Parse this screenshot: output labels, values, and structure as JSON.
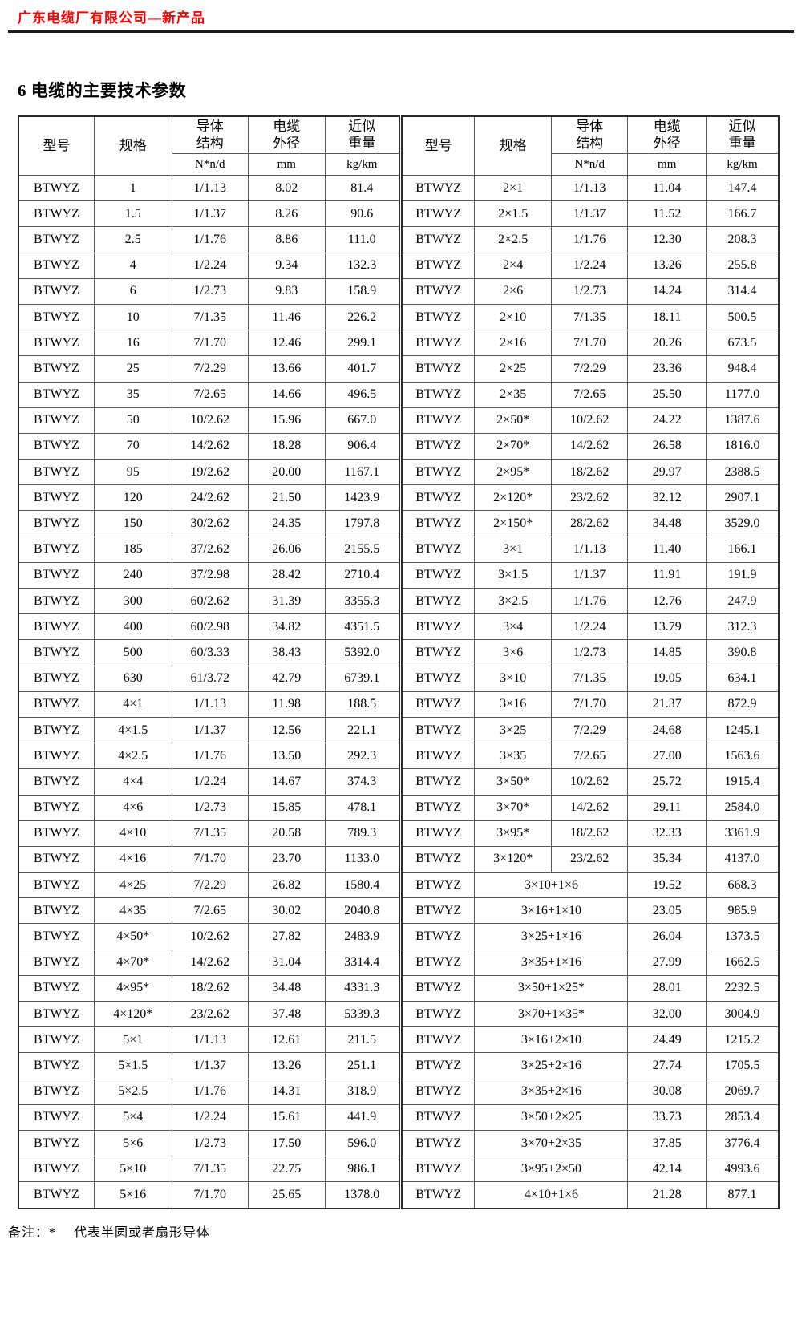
{
  "page": {
    "header": "广东电缆厂有限公司—新产品",
    "title": "6 电缆的主要技术参数",
    "note": "备注：*　 代表半圆或者扇形导体",
    "accent_color": "#ff0000"
  },
  "table": {
    "headers": {
      "model": "型号",
      "spec": "规格",
      "conductor_l1": "导体",
      "conductor_l2": "结构",
      "od_l1": "电缆",
      "od_l2": "外径",
      "weight_l1": "近似",
      "weight_l2": "重量",
      "conductor_unit": "N*n/d",
      "od_unit": "mm",
      "weight_unit": "kg/km"
    },
    "left_rows": [
      [
        "BTWYZ",
        "1",
        "1/1.13",
        "8.02",
        "81.4"
      ],
      [
        "BTWYZ",
        "1.5",
        "1/1.37",
        "8.26",
        "90.6"
      ],
      [
        "BTWYZ",
        "2.5",
        "1/1.76",
        "8.86",
        "111.0"
      ],
      [
        "BTWYZ",
        "4",
        "1/2.24",
        "9.34",
        "132.3"
      ],
      [
        "BTWYZ",
        "6",
        "1/2.73",
        "9.83",
        "158.9"
      ],
      [
        "BTWYZ",
        "10",
        "7/1.35",
        "11.46",
        "226.2"
      ],
      [
        "BTWYZ",
        "16",
        "7/1.70",
        "12.46",
        "299.1"
      ],
      [
        "BTWYZ",
        "25",
        "7/2.29",
        "13.66",
        "401.7"
      ],
      [
        "BTWYZ",
        "35",
        "7/2.65",
        "14.66",
        "496.5"
      ],
      [
        "BTWYZ",
        "50",
        "10/2.62",
        "15.96",
        "667.0"
      ],
      [
        "BTWYZ",
        "70",
        "14/2.62",
        "18.28",
        "906.4"
      ],
      [
        "BTWYZ",
        "95",
        "19/2.62",
        "20.00",
        "1167.1"
      ],
      [
        "BTWYZ",
        "120",
        "24/2.62",
        "21.50",
        "1423.9"
      ],
      [
        "BTWYZ",
        "150",
        "30/2.62",
        "24.35",
        "1797.8"
      ],
      [
        "BTWYZ",
        "185",
        "37/2.62",
        "26.06",
        "2155.5"
      ],
      [
        "BTWYZ",
        "240",
        "37/2.98",
        "28.42",
        "2710.4"
      ],
      [
        "BTWYZ",
        "300",
        "60/2.62",
        "31.39",
        "3355.3"
      ],
      [
        "BTWYZ",
        "400",
        "60/2.98",
        "34.82",
        "4351.5"
      ],
      [
        "BTWYZ",
        "500",
        "60/3.33",
        "38.43",
        "5392.0"
      ],
      [
        "BTWYZ",
        "630",
        "61/3.72",
        "42.79",
        "6739.1"
      ],
      [
        "BTWYZ",
        "4×1",
        "1/1.13",
        "11.98",
        "188.5"
      ],
      [
        "BTWYZ",
        "4×1.5",
        "1/1.37",
        "12.56",
        "221.1"
      ],
      [
        "BTWYZ",
        "4×2.5",
        "1/1.76",
        "13.50",
        "292.3"
      ],
      [
        "BTWYZ",
        "4×4",
        "1/2.24",
        "14.67",
        "374.3"
      ],
      [
        "BTWYZ",
        "4×6",
        "1/2.73",
        "15.85",
        "478.1"
      ],
      [
        "BTWYZ",
        "4×10",
        "7/1.35",
        "20.58",
        "789.3"
      ],
      [
        "BTWYZ",
        "4×16",
        "7/1.70",
        "23.70",
        "1133.0"
      ],
      [
        "BTWYZ",
        "4×25",
        "7/2.29",
        "26.82",
        "1580.4"
      ],
      [
        "BTWYZ",
        "4×35",
        "7/2.65",
        "30.02",
        "2040.8"
      ],
      [
        "BTWYZ",
        "4×50*",
        "10/2.62",
        "27.82",
        "2483.9"
      ],
      [
        "BTWYZ",
        "4×70*",
        "14/2.62",
        "31.04",
        "3314.4"
      ],
      [
        "BTWYZ",
        "4×95*",
        "18/2.62",
        "34.48",
        "4331.3"
      ],
      [
        "BTWYZ",
        "4×120*",
        "23/2.62",
        "37.48",
        "5339.3"
      ],
      [
        "BTWYZ",
        "5×1",
        "1/1.13",
        "12.61",
        "211.5"
      ],
      [
        "BTWYZ",
        "5×1.5",
        "1/1.37",
        "13.26",
        "251.1"
      ],
      [
        "BTWYZ",
        "5×2.5",
        "1/1.76",
        "14.31",
        "318.9"
      ],
      [
        "BTWYZ",
        "5×4",
        "1/2.24",
        "15.61",
        "441.9"
      ],
      [
        "BTWYZ",
        "5×6",
        "1/2.73",
        "17.50",
        "596.0"
      ],
      [
        "BTWYZ",
        "5×10",
        "7/1.35",
        "22.75",
        "986.1"
      ],
      [
        "BTWYZ",
        "5×16",
        "7/1.70",
        "25.65",
        "1378.0"
      ]
    ],
    "right_rows": [
      [
        "BTWYZ",
        "2×1",
        "1/1.13",
        "11.04",
        "147.4"
      ],
      [
        "BTWYZ",
        "2×1.5",
        "1/1.37",
        "11.52",
        "166.7"
      ],
      [
        "BTWYZ",
        "2×2.5",
        "1/1.76",
        "12.30",
        "208.3"
      ],
      [
        "BTWYZ",
        "2×4",
        "1/2.24",
        "13.26",
        "255.8"
      ],
      [
        "BTWYZ",
        "2×6",
        "1/2.73",
        "14.24",
        "314.4"
      ],
      [
        "BTWYZ",
        "2×10",
        "7/1.35",
        "18.11",
        "500.5"
      ],
      [
        "BTWYZ",
        "2×16",
        "7/1.70",
        "20.26",
        "673.5"
      ],
      [
        "BTWYZ",
        "2×25",
        "7/2.29",
        "23.36",
        "948.4"
      ],
      [
        "BTWYZ",
        "2×35",
        "7/2.65",
        "25.50",
        "1177.0"
      ],
      [
        "BTWYZ",
        "2×50*",
        "10/2.62",
        "24.22",
        "1387.6"
      ],
      [
        "BTWYZ",
        "2×70*",
        "14/2.62",
        "26.58",
        "1816.0"
      ],
      [
        "BTWYZ",
        "2×95*",
        "18/2.62",
        "29.97",
        "2388.5"
      ],
      [
        "BTWYZ",
        "2×120*",
        "23/2.62",
        "32.12",
        "2907.1"
      ],
      [
        "BTWYZ",
        "2×150*",
        "28/2.62",
        "34.48",
        "3529.0"
      ],
      [
        "BTWYZ",
        "3×1",
        "1/1.13",
        "11.40",
        "166.1"
      ],
      [
        "BTWYZ",
        "3×1.5",
        "1/1.37",
        "11.91",
        "191.9"
      ],
      [
        "BTWYZ",
        "3×2.5",
        "1/1.76",
        "12.76",
        "247.9"
      ],
      [
        "BTWYZ",
        "3×4",
        "1/2.24",
        "13.79",
        "312.3"
      ],
      [
        "BTWYZ",
        "3×6",
        "1/2.73",
        "14.85",
        "390.8"
      ],
      [
        "BTWYZ",
        "3×10",
        "7/1.35",
        "19.05",
        "634.1"
      ],
      [
        "BTWYZ",
        "3×16",
        "7/1.70",
        "21.37",
        "872.9"
      ],
      [
        "BTWYZ",
        "3×25",
        "7/2.29",
        "24.68",
        "1245.1"
      ],
      [
        "BTWYZ",
        "3×35",
        "7/2.65",
        "27.00",
        "1563.6"
      ],
      [
        "BTWYZ",
        "3×50*",
        "10/2.62",
        "25.72",
        "1915.4"
      ],
      [
        "BTWYZ",
        "3×70*",
        "14/2.62",
        "29.11",
        "2584.0"
      ],
      [
        "BTWYZ",
        "3×95*",
        "18/2.62",
        "32.33",
        "3361.9"
      ],
      [
        "BTWYZ",
        "3×120*",
        "23/2.62",
        "35.34",
        "4137.0"
      ],
      [
        "BTWYZ",
        "3×10+1×6",
        null,
        "19.52",
        "668.3"
      ],
      [
        "BTWYZ",
        "3×16+1×10",
        null,
        "23.05",
        "985.9"
      ],
      [
        "BTWYZ",
        "3×25+1×16",
        null,
        "26.04",
        "1373.5"
      ],
      [
        "BTWYZ",
        "3×35+1×16",
        null,
        "27.99",
        "1662.5"
      ],
      [
        "BTWYZ",
        "3×50+1×25*",
        null,
        "28.01",
        "2232.5"
      ],
      [
        "BTWYZ",
        "3×70+1×35*",
        null,
        "32.00",
        "3004.9"
      ],
      [
        "BTWYZ",
        "3×16+2×10",
        null,
        "24.49",
        "1215.2"
      ],
      [
        "BTWYZ",
        "3×25+2×16",
        null,
        "27.74",
        "1705.5"
      ],
      [
        "BTWYZ",
        "3×35+2×16",
        null,
        "30.08",
        "2069.7"
      ],
      [
        "BTWYZ",
        "3×50+2×25",
        null,
        "33.73",
        "2853.4"
      ],
      [
        "BTWYZ",
        "3×70+2×35",
        null,
        "37.85",
        "3776.4"
      ],
      [
        "BTWYZ",
        "3×95+2×50",
        null,
        "42.14",
        "4993.6"
      ],
      [
        "BTWYZ",
        "4×10+1×6",
        null,
        "21.28",
        "877.1"
      ]
    ]
  }
}
